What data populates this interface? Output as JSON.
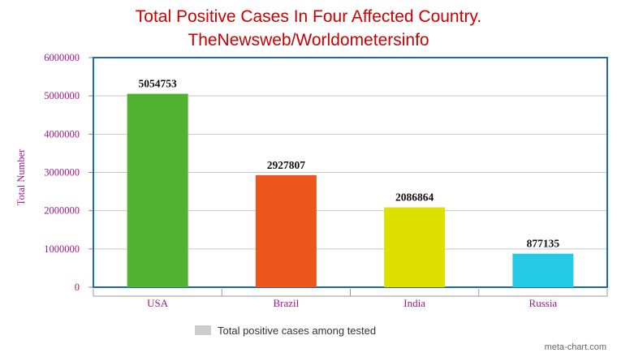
{
  "chart_data": {
    "type": "bar",
    "title": "Total Positive Cases In Four Affected Country.",
    "subtitle": "TheNewsweb/Worldometersinfo",
    "xlabel": "",
    "ylabel": "Total Number",
    "categories": [
      "USA",
      "Brazil",
      "India",
      "Russia"
    ],
    "values": [
      5054753,
      2927807,
      2086864,
      877135
    ],
    "value_labels": [
      "5054753",
      "2927807",
      "2086864",
      "877135"
    ],
    "bar_colors": [
      "#52b130",
      "#ec571e",
      "#dee000",
      "#25cbe6"
    ],
    "ylim": [
      0,
      6000000
    ],
    "yticks": [
      0,
      1000000,
      2000000,
      3000000,
      4000000,
      5000000,
      6000000
    ],
    "ytick_labels": [
      "0",
      "1000000",
      "2000000",
      "3000000",
      "4000000",
      "5000000",
      "6000000"
    ],
    "grid": true,
    "legend": {
      "label": "Total positive cases among tested",
      "color": "#cccccc",
      "position": "bottom-center"
    }
  },
  "colors": {
    "title": "#cc0000",
    "axis_text": "#a0168e",
    "frame": "#1d6aa5",
    "grid": "#c8c8c8"
  },
  "footer": {
    "credit": "meta-chart.com"
  }
}
